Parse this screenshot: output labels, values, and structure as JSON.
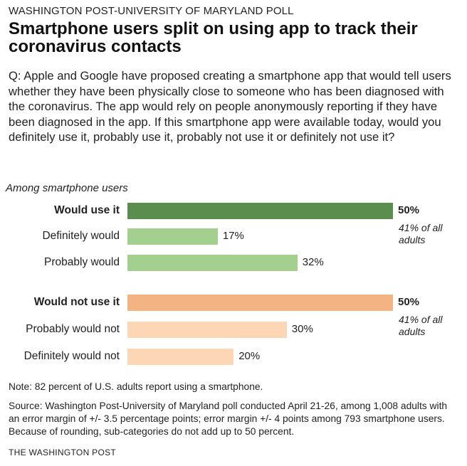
{
  "header": {
    "kicker": "WASHINGTON POST-UNIVERSITY OF MARYLAND POLL",
    "title": "Smartphone users split on using app to track their coronavirus contacts",
    "question": "Q: Apple and Google have proposed creating a smartphone app that would tell users whether they have been physically close to someone who has been diagnosed with the coronavirus. The app would rely on people anonymously reporting if they have been diagnosed in the app. If this smartphone app were available today, would you definitely use it, probably use it, probably not use it or definitely not use it?"
  },
  "chart_data": {
    "type": "bar",
    "orientation": "horizontal",
    "subtitle": "Among smartphone users",
    "unit": "%",
    "xlim": [
      0,
      50
    ],
    "categories": [
      "Would use it",
      "Definitely would",
      "Probably would",
      "Would not use it",
      "Probably would not",
      "Definitely would not"
    ],
    "values": [
      50,
      17,
      32,
      50,
      30,
      20
    ],
    "labels": [
      "50%",
      "17%",
      "32%",
      "50%",
      "30%",
      "20%"
    ],
    "colors": [
      "#5b8e4e",
      "#a3cf8f",
      "#a3cf8f",
      "#f4b383",
      "#fdd6b5",
      "#fdd6b5"
    ],
    "group_notes": [
      "41% of all adults",
      "41% of all adults"
    ]
  },
  "footer": {
    "note": "Note: 82 percent of U.S. adults report using a smartphone.",
    "source": "Source: Washington Post-University of Maryland poll conducted April 21-26, among 1,008 adults with an error margin of +/- 3.5 percentage points; error margin +/- 4 points among 793 smartphone users. Because of rounding, sub-categories do not add up to 50 percent.",
    "credit": "THE WASHINGTON POST"
  }
}
